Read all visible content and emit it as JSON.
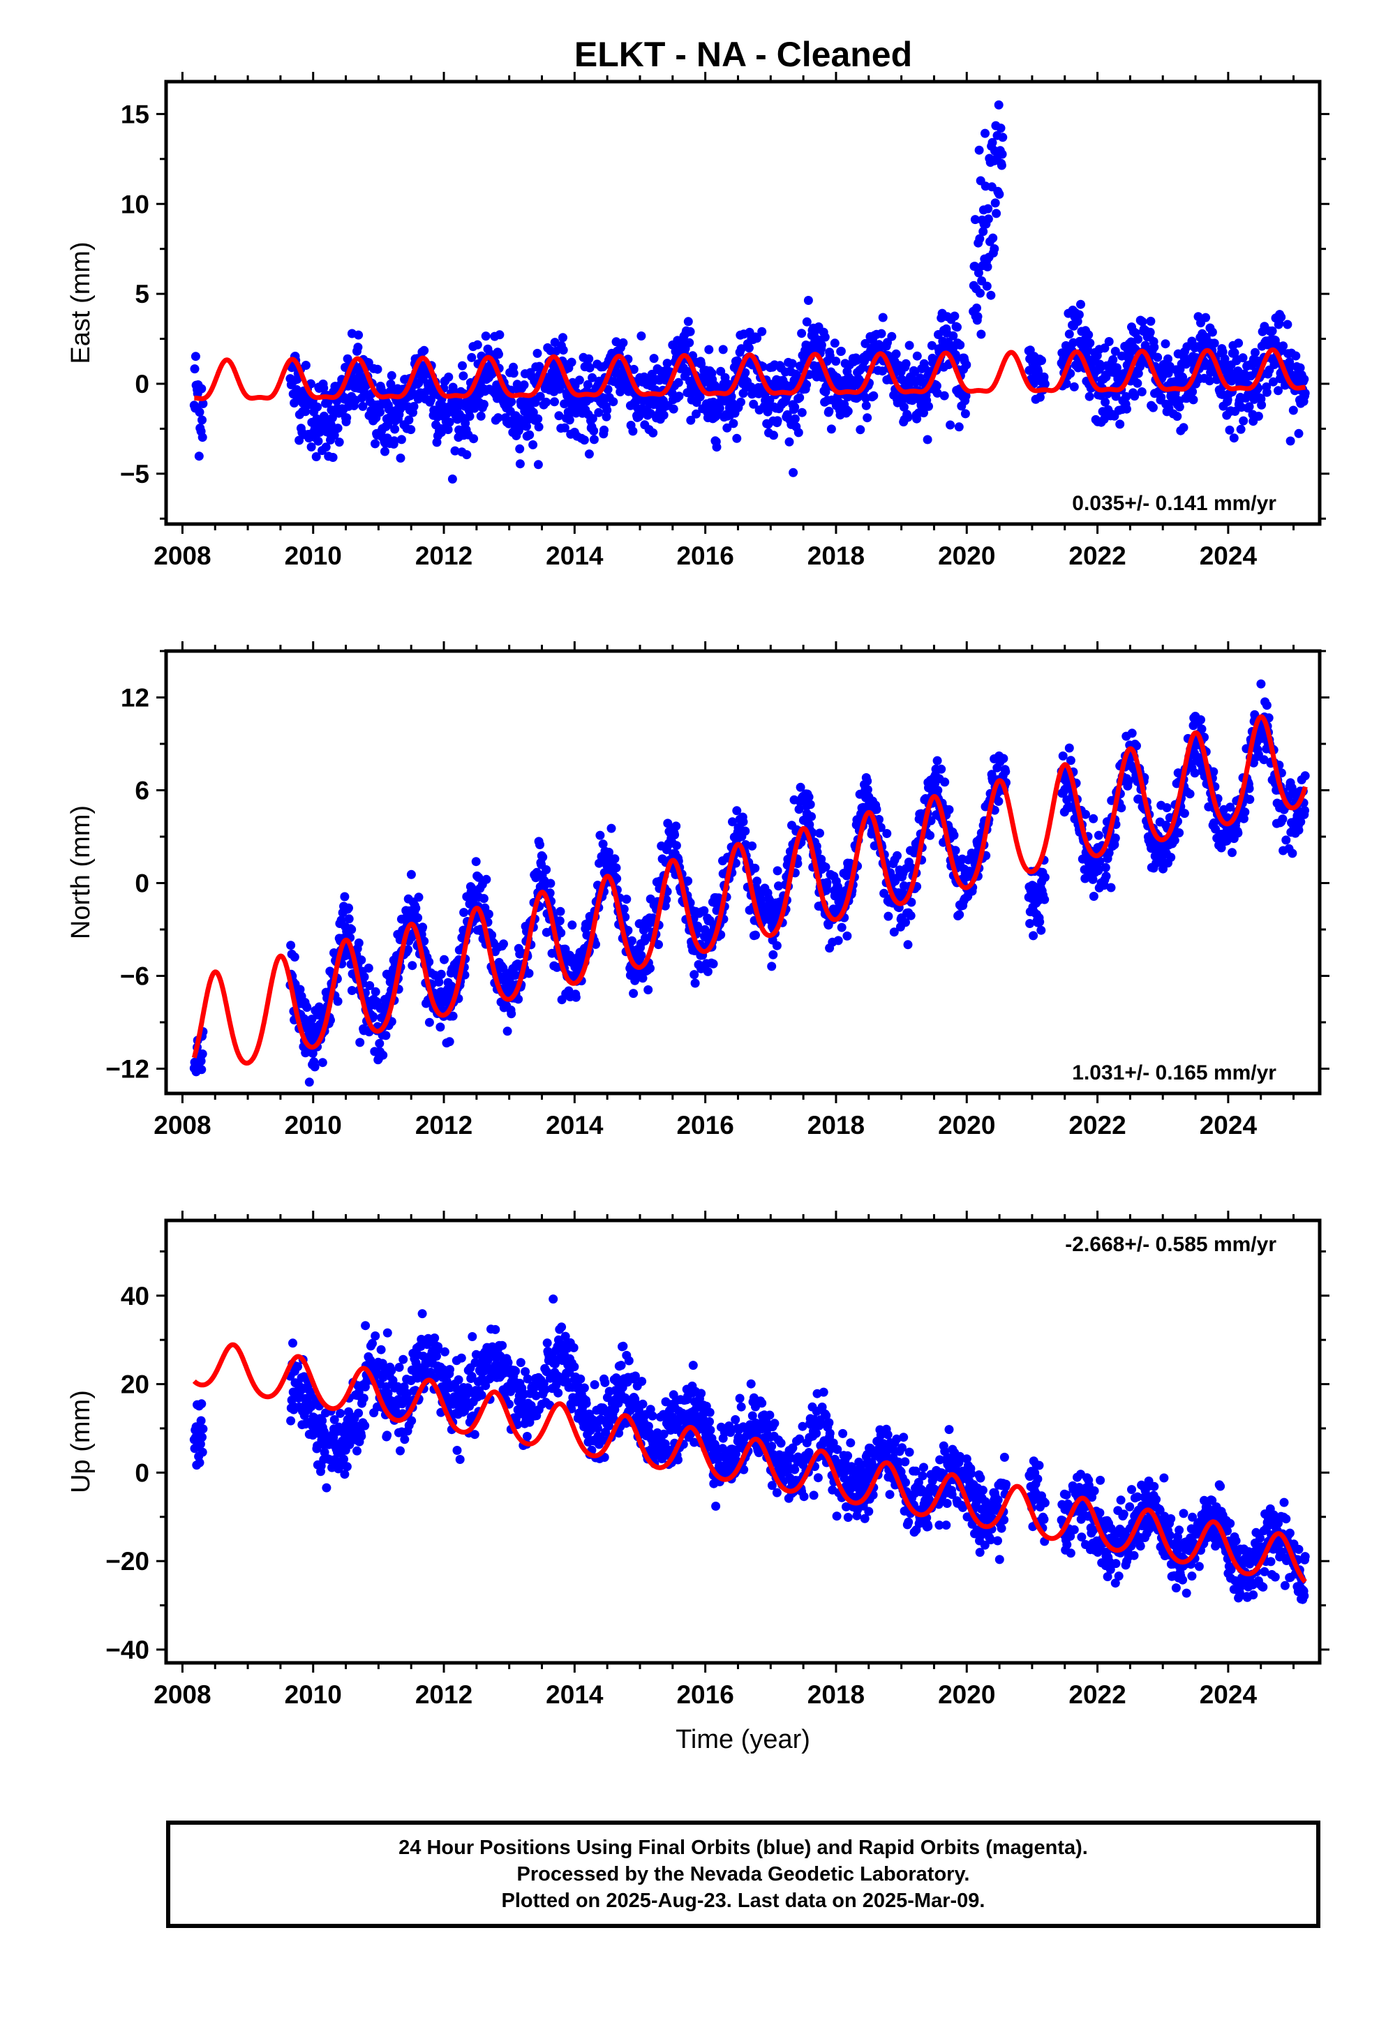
{
  "title": "ELKT  - NA - Cleaned",
  "colors": {
    "final_orbits": "#0000ff",
    "model": "#ff0000",
    "axes": "#000000"
  },
  "chart_data": [
    {
      "type": "scatter",
      "ylabel": "East (mm)",
      "xlim": [
        2007.75,
        2025.4
      ],
      "ylim": [
        -7.8,
        16.8
      ],
      "yticks": [
        -5,
        0,
        5,
        10,
        15
      ],
      "yticklabels": [
        "−5",
        "0",
        "5",
        "10",
        "15"
      ],
      "xticks": [
        2008,
        2010,
        2012,
        2014,
        2016,
        2018,
        2020,
        2022,
        2024
      ],
      "xticklabels": [
        "2008",
        "2010",
        "2012",
        "2014",
        "2016",
        "2018",
        "2020",
        "2022",
        "2024"
      ],
      "rate_label": "0.035+/- 0.141 mm/yr",
      "rate_position": "bottom-right",
      "model": {
        "slope": 0.035,
        "ref_year": 2016.5,
        "ref_value": 0.2,
        "annual_amp": 1.05,
        "annual_phase_year": 2008.68,
        "semiannual_amp": 0.35
      },
      "data_segments": [
        {
          "start": 2008.18,
          "end": 2008.32,
          "trend_at_start": 0.0,
          "slope": 0.0,
          "noise": 1.6
        },
        {
          "start": 2009.65,
          "end": 2019.65,
          "trend_at_start": -1.2,
          "slope": 0.18,
          "noise": 1.1
        },
        {
          "start": 2019.65,
          "end": 2020.0,
          "trend_at_start": 0.6,
          "slope": 0.0,
          "noise": 1.4
        },
        {
          "start": 2020.1,
          "end": 2020.55,
          "trend_at_start": 7.0,
          "slope": 16.0,
          "noise": 2.2
        },
        {
          "start": 2020.95,
          "end": 2021.2,
          "trend_at_start": 1.0,
          "slope": 0.0,
          "noise": 1.0
        },
        {
          "start": 2021.45,
          "end": 2025.18,
          "trend_at_start": 0.6,
          "slope": 0.0,
          "noise": 1.1
        }
      ],
      "model_gaps": []
    },
    {
      "type": "scatter",
      "ylabel": "North (mm)",
      "xlim": [
        2007.75,
        2025.4
      ],
      "ylim": [
        -13.6,
        15.0
      ],
      "yticks": [
        -12,
        -6,
        0,
        6,
        12
      ],
      "yticklabels": [
        "−12",
        "−6",
        "0",
        "6",
        "12"
      ],
      "xticks": [
        2008,
        2010,
        2012,
        2014,
        2016,
        2018,
        2020,
        2022,
        2024
      ],
      "xticklabels": [
        "2008",
        "2010",
        "2012",
        "2014",
        "2016",
        "2018",
        "2020",
        "2022",
        "2024"
      ],
      "rate_label": "1.031+/- 0.165 mm/yr",
      "rate_position": "bottom-right",
      "model": {
        "slope": 1.031,
        "ref_year": 2016.5,
        "ref_value": -1.1,
        "annual_amp": 3.2,
        "annual_phase_year": 2008.5,
        "semiannual_amp": 0.4
      },
      "data_segments": [
        {
          "start": 2008.18,
          "end": 2008.32,
          "trend_at_start": -10.5,
          "slope": 0.0,
          "noise": 1.2
        },
        {
          "start": 2009.65,
          "end": 2020.6,
          "trend_at_start": -7.6,
          "slope": 1.03,
          "noise": 1.1
        },
        {
          "start": 2020.95,
          "end": 2021.2,
          "trend_at_start": 1.5,
          "slope": 0.0,
          "noise": 1.2
        },
        {
          "start": 2021.45,
          "end": 2025.18,
          "trend_at_start": 3.5,
          "slope": 1.03,
          "noise": 1.0
        }
      ],
      "model_gaps": []
    },
    {
      "type": "scatter",
      "ylabel": "Up (mm)",
      "xlabel": "Time (year)",
      "xlim": [
        2007.75,
        2025.4
      ],
      "ylim": [
        -43,
        57
      ],
      "yticks": [
        -40,
        -20,
        0,
        20,
        40
      ],
      "yticklabels": [
        "−40",
        "−20",
        "0",
        "20",
        "40"
      ],
      "xticks": [
        2008,
        2010,
        2012,
        2014,
        2016,
        2018,
        2020,
        2022,
        2024
      ],
      "xticklabels": [
        "2008",
        "2010",
        "2012",
        "2014",
        "2016",
        "2018",
        "2020",
        "2022",
        "2024"
      ],
      "rate_label": "-2.668+/- 0.585 mm/yr",
      "rate_position": "top-right",
      "model": {
        "slope": -2.668,
        "ref_year": 2016.5,
        "ref_value": 2.5,
        "annual_amp": 5.2,
        "annual_phase_year": 2008.78,
        "semiannual_amp": 0.6
      },
      "data_segments": [
        {
          "start": 2008.18,
          "end": 2008.32,
          "trend_at_start": 14.0,
          "slope": 0.0,
          "noise": 4.5
        },
        {
          "start": 2009.65,
          "end": 2010.8,
          "trend_at_start": 14.0,
          "slope": -6.0,
          "noise": 4.0
        },
        {
          "start": 2010.8,
          "end": 2014.0,
          "trend_at_start": 20.0,
          "slope": 0.0,
          "noise": 4.2
        },
        {
          "start": 2014.0,
          "end": 2020.6,
          "trend_at_start": 16.0,
          "slope": -3.5,
          "noise": 4.0
        },
        {
          "start": 2020.95,
          "end": 2021.2,
          "trend_at_start": -4.0,
          "slope": 0.0,
          "noise": 4.5
        },
        {
          "start": 2021.45,
          "end": 2025.18,
          "trend_at_start": -10.0,
          "slope": -2.7,
          "noise": 4.0
        }
      ],
      "model_gaps": []
    }
  ],
  "footer": {
    "line1": "24 Hour Positions Using Final Orbits (blue) and Rapid Orbits (magenta).",
    "line2": "Processed by the Nevada Geodetic Laboratory.",
    "line3": "Plotted on 2025-Aug-23. Last data on 2025-Mar-09."
  }
}
